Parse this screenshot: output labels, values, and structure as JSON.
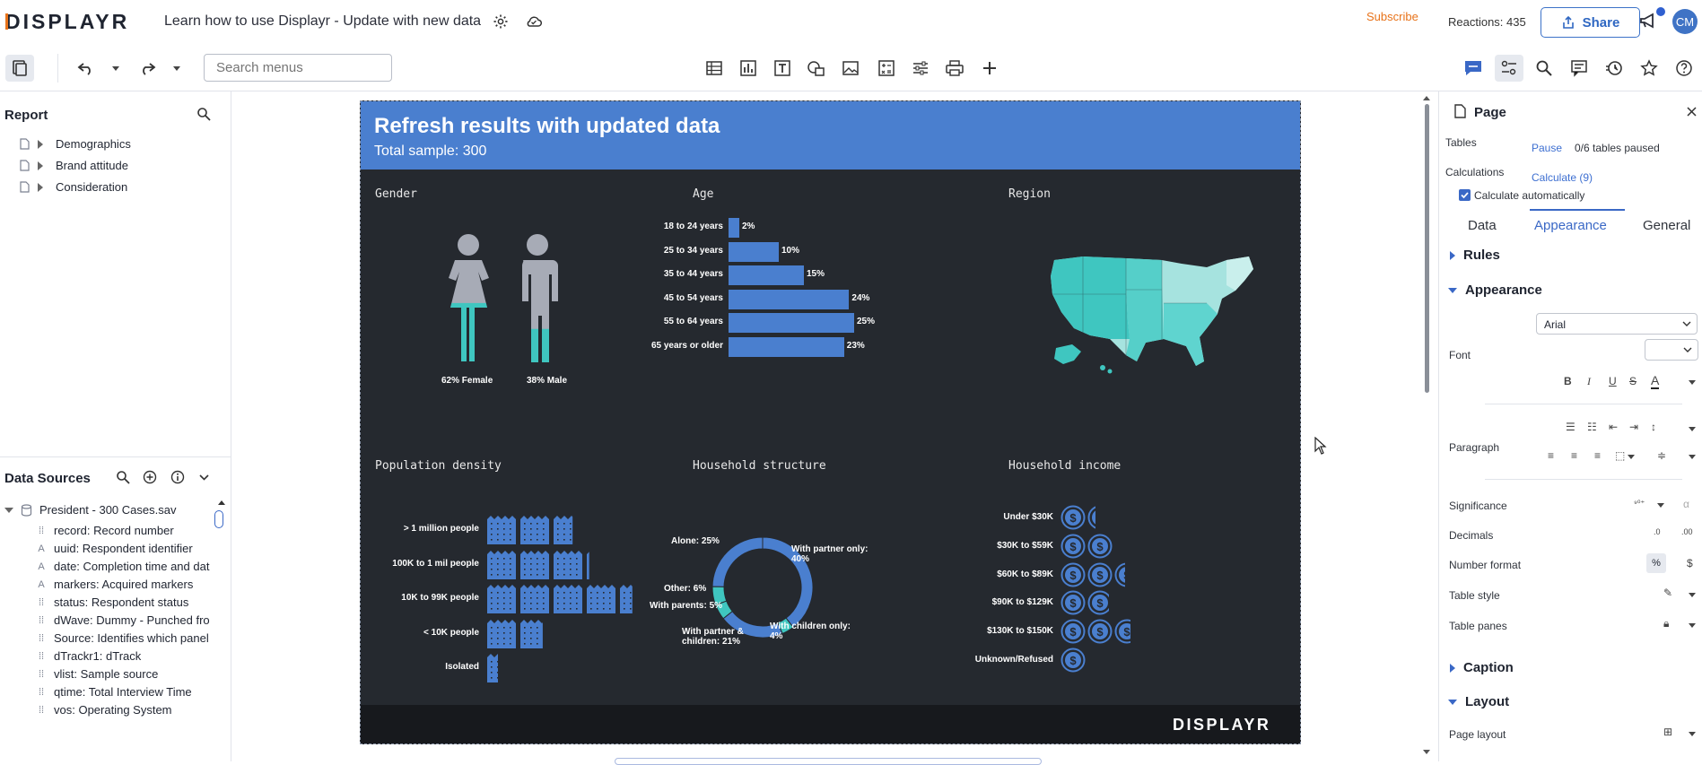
{
  "app": {
    "logo_text": "DISPLAYR",
    "doc_title": "Learn how to use Displayr - Update with new data"
  },
  "topbar": {
    "subscribe": "Subscribe",
    "reactions": "Reactions: 435",
    "share": "Share",
    "avatar_initials": "CM"
  },
  "toolbar": {
    "search_placeholder": "Search menus"
  },
  "report": {
    "title": "Report",
    "items": [
      {
        "label": "Demographics"
      },
      {
        "label": "Brand attitude"
      },
      {
        "label": "Consideration"
      }
    ]
  },
  "data_sources": {
    "title": "Data Sources",
    "file": "President - 300 Cases.sav",
    "variables": [
      {
        "icon": "numeric-icon",
        "label": "record: Record number"
      },
      {
        "icon": "text-icon",
        "label": "uuid: Respondent identifier"
      },
      {
        "icon": "text-icon",
        "label": "date: Completion time and dat"
      },
      {
        "icon": "text-icon",
        "label": "markers: Acquired markers"
      },
      {
        "icon": "numeric-icon",
        "label": "status: Respondent status"
      },
      {
        "icon": "numeric-icon",
        "label": "dWave: Dummy - Punched fro"
      },
      {
        "icon": "numeric-icon",
        "label": "Source: Identifies which panel"
      },
      {
        "icon": "numeric-icon",
        "label": "dTrackr1: dTrack"
      },
      {
        "icon": "numeric-icon",
        "label": "vlist: Sample source"
      },
      {
        "icon": "numeric-icon",
        "label": "qtime: Total Interview Time"
      },
      {
        "icon": "numeric-icon",
        "label": "vos: Operating System"
      }
    ]
  },
  "dashboard": {
    "title": "Refresh results with updated data",
    "subtitle": "Total sample: 300",
    "footer_logo": "DISPLAYR",
    "sections": {
      "gender": "Gender",
      "age": "Age",
      "region": "Region",
      "density": "Population density",
      "household": "Household structure",
      "income": "Household income"
    },
    "gender": {
      "female_label": "62% Female",
      "male_label": "38% Male",
      "female_pct": 62,
      "male_pct": 38
    },
    "age": [
      {
        "label": "18 to 24 years",
        "value": 2,
        "text": "2%"
      },
      {
        "label": "25 to 34 years",
        "value": 10,
        "text": "10%"
      },
      {
        "label": "35 to 44 years",
        "value": 15,
        "text": "15%"
      },
      {
        "label": "45 to 54 years",
        "value": 24,
        "text": "24%"
      },
      {
        "label": "55 to 64 years",
        "value": 25,
        "text": "25%"
      },
      {
        "label": "65 years or older",
        "value": 23,
        "text": "23%"
      }
    ],
    "density": [
      {
        "label": "> 1 million people",
        "units": 2.6
      },
      {
        "label": "100K to 1 mil people",
        "units": 3.1
      },
      {
        "label": "10K to 99K people",
        "units": 4.4
      },
      {
        "label": "< 10K people",
        "units": 1.7
      },
      {
        "label": "Isolated",
        "units": 0.35
      }
    ],
    "household": [
      {
        "label": "Alone: 25%",
        "value": 25
      },
      {
        "label": "With partner only: 40%",
        "value": 40
      },
      {
        "label": "With children only: 4%",
        "value": 4
      },
      {
        "label": "With partner & children: 21%",
        "value": 21
      },
      {
        "label": "With parents: 5%",
        "value": 5
      },
      {
        "label": "Other: 6%",
        "value": 6
      }
    ],
    "income": [
      {
        "label": "Under $30K",
        "coins": 1.3
      },
      {
        "label": "$30K to $59K",
        "coins": 2
      },
      {
        "label": "$60K to $89K",
        "coins": 2.4
      },
      {
        "label": "$90K to $129K",
        "coins": 1.8
      },
      {
        "label": "$130K to $150K",
        "coins": 2.6
      },
      {
        "label": "Unknown/Refused",
        "coins": 1
      }
    ]
  },
  "right_panel": {
    "title": "Page",
    "tables_label": "Tables",
    "pause": "Pause",
    "paused_status": "0/6 tables paused",
    "calculations_label": "Calculations",
    "calculate": "Calculate (9)",
    "calc_auto": "Calculate automatically",
    "tabs": [
      "Data",
      "Appearance",
      "General"
    ],
    "rules": "Rules",
    "appearance": "Appearance",
    "font_name": "Arial",
    "font_label": "Font",
    "paragraph_label": "Paragraph",
    "significance": "Significance",
    "decimals": "Decimals",
    "number_format": "Number format",
    "table_style": "Table style",
    "table_panes": "Table panes",
    "caption": "Caption",
    "layout": "Layout",
    "page_layout": "Page layout"
  },
  "colors": {
    "accent": "#4a7fcf",
    "teal": "#3fc6c0",
    "dark": "#25292f",
    "subscribe": "#e8731a"
  }
}
